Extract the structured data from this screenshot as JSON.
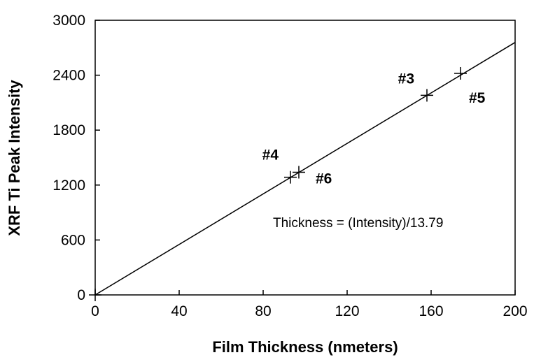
{
  "chart_data": {
    "type": "scatter",
    "title": "",
    "xlabel": "Film Thickness (nmeters)",
    "ylabel": "XRF Ti Peak Intensity",
    "xlim": [
      0,
      200
    ],
    "ylim": [
      0,
      3000
    ],
    "x_ticks": [
      "0",
      "40",
      "80",
      "120",
      "160",
      "200"
    ],
    "y_ticks": [
      "0",
      "600",
      "1200",
      "1800",
      "2400",
      "3000"
    ],
    "grid": false,
    "points": [
      {
        "label": "",
        "x": 0,
        "y": 0
      },
      {
        "label": "#4",
        "x": 93,
        "y": 1285
      },
      {
        "label": "#6",
        "x": 97,
        "y": 1340
      },
      {
        "label": "#3",
        "x": 158,
        "y": 2180
      },
      {
        "label": "#5",
        "x": 174,
        "y": 2420
      }
    ],
    "fit_line": {
      "slope": 13.79,
      "intercept": 0,
      "equation_text": "Thickness = (Intensity)/13.79"
    }
  }
}
